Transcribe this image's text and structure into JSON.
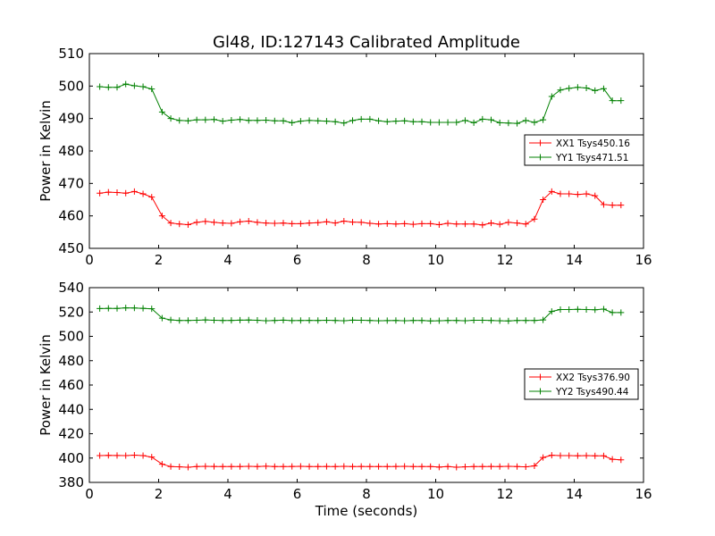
{
  "figure_title": "Gl48, ID:127143 Calibrated Amplitude",
  "chart_data": [
    {
      "type": "line",
      "title": "Gl48, ID:127143 Calibrated Amplitude",
      "xlabel": "",
      "ylabel": "Power in Kelvin",
      "xlim": [
        0,
        16
      ],
      "ylim": [
        450,
        510
      ],
      "xticks": [
        0,
        2,
        4,
        6,
        8,
        10,
        12,
        14,
        16
      ],
      "yticks": [
        450,
        460,
        470,
        480,
        490,
        500,
        510
      ],
      "grid": false,
      "legend_position": "right",
      "series": [
        {
          "name": "XX1 Tsys450.16",
          "color": "#ff0000",
          "marker": "plus",
          "x": [
            0.3,
            0.55,
            0.8,
            1.05,
            1.3,
            1.55,
            1.8,
            2.1,
            2.35,
            2.6,
            2.85,
            3.1,
            3.35,
            3.6,
            3.85,
            4.1,
            4.35,
            4.6,
            4.85,
            5.1,
            5.35,
            5.6,
            5.85,
            6.1,
            6.35,
            6.6,
            6.85,
            7.1,
            7.35,
            7.6,
            7.85,
            8.1,
            8.35,
            8.6,
            8.85,
            9.1,
            9.35,
            9.6,
            9.85,
            10.1,
            10.35,
            10.6,
            10.85,
            11.1,
            11.35,
            11.6,
            11.85,
            12.1,
            12.35,
            12.6,
            12.85,
            13.1,
            13.35,
            13.6,
            13.85,
            14.1,
            14.35,
            14.6,
            14.85,
            15.1,
            15.35
          ],
          "y": [
            467.0,
            467.3,
            467.2,
            467.0,
            467.5,
            466.8,
            465.8,
            460.0,
            457.8,
            457.5,
            457.3,
            458.0,
            458.3,
            458.0,
            457.8,
            457.7,
            458.2,
            458.4,
            458.0,
            457.8,
            457.7,
            457.8,
            457.6,
            457.6,
            457.8,
            457.9,
            458.2,
            457.8,
            458.4,
            458.1,
            458.0,
            457.7,
            457.5,
            457.6,
            457.5,
            457.6,
            457.4,
            457.6,
            457.6,
            457.3,
            457.7,
            457.5,
            457.5,
            457.5,
            457.2,
            457.8,
            457.4,
            458.0,
            457.8,
            457.5,
            459.0,
            465.0,
            467.5,
            466.8,
            466.8,
            466.6,
            466.8,
            466.2,
            463.5,
            463.3,
            463.3
          ]
        },
        {
          "name": "YY1 Tsys471.51",
          "color": "#008000",
          "marker": "plus",
          "x": [
            0.3,
            0.55,
            0.8,
            1.05,
            1.3,
            1.55,
            1.8,
            2.1,
            2.35,
            2.6,
            2.85,
            3.1,
            3.35,
            3.6,
            3.85,
            4.1,
            4.35,
            4.6,
            4.85,
            5.1,
            5.35,
            5.6,
            5.85,
            6.1,
            6.35,
            6.6,
            6.85,
            7.1,
            7.35,
            7.6,
            7.85,
            8.1,
            8.35,
            8.6,
            8.85,
            9.1,
            9.35,
            9.6,
            9.85,
            10.1,
            10.35,
            10.6,
            10.85,
            11.1,
            11.35,
            11.6,
            11.85,
            12.1,
            12.35,
            12.6,
            12.85,
            13.1,
            13.35,
            13.6,
            13.85,
            14.1,
            14.35,
            14.6,
            14.85,
            15.1,
            15.35
          ],
          "y": [
            499.8,
            499.6,
            499.6,
            500.6,
            500.1,
            499.8,
            499.1,
            492.0,
            490.0,
            489.4,
            489.3,
            489.6,
            489.6,
            489.7,
            489.2,
            489.5,
            489.7,
            489.4,
            489.4,
            489.5,
            489.3,
            489.3,
            488.7,
            489.2,
            489.4,
            489.3,
            489.2,
            489.0,
            488.6,
            489.4,
            489.8,
            489.8,
            489.3,
            489.0,
            489.2,
            489.3,
            489.0,
            489.0,
            488.8,
            488.8,
            488.8,
            488.8,
            489.4,
            488.7,
            489.8,
            489.6,
            488.7,
            488.6,
            488.5,
            489.4,
            488.8,
            489.6,
            496.8,
            498.8,
            499.3,
            499.6,
            499.4,
            498.6,
            499.2,
            495.5,
            495.5
          ]
        }
      ]
    },
    {
      "type": "line",
      "title": "",
      "xlabel": "Time (seconds)",
      "ylabel": "Power in Kelvin",
      "xlim": [
        0,
        16
      ],
      "ylim": [
        380,
        540
      ],
      "xticks": [
        0,
        2,
        4,
        6,
        8,
        10,
        12,
        14,
        16
      ],
      "yticks": [
        380,
        400,
        420,
        440,
        460,
        480,
        500,
        520,
        540
      ],
      "grid": false,
      "legend_position": "right",
      "series": [
        {
          "name": "XX2 Tsys376.90",
          "color": "#ff0000",
          "marker": "plus",
          "x": [
            0.3,
            0.55,
            0.8,
            1.05,
            1.3,
            1.55,
            1.8,
            2.1,
            2.35,
            2.6,
            2.85,
            3.1,
            3.35,
            3.6,
            3.85,
            4.1,
            4.35,
            4.6,
            4.85,
            5.1,
            5.35,
            5.6,
            5.85,
            6.1,
            6.35,
            6.6,
            6.85,
            7.1,
            7.35,
            7.6,
            7.85,
            8.1,
            8.35,
            8.6,
            8.85,
            9.1,
            9.35,
            9.6,
            9.85,
            10.1,
            10.35,
            10.6,
            10.85,
            11.1,
            11.35,
            11.6,
            11.85,
            12.1,
            12.35,
            12.6,
            12.85,
            13.1,
            13.35,
            13.6,
            13.85,
            14.1,
            14.35,
            14.6,
            14.85,
            15.1,
            15.35
          ],
          "y": [
            402.0,
            402.2,
            402.1,
            402.0,
            402.4,
            402.0,
            400.8,
            395.0,
            393.0,
            392.8,
            392.5,
            393.0,
            393.2,
            393.1,
            393.0,
            393.0,
            393.0,
            393.2,
            393.0,
            393.3,
            393.0,
            393.0,
            393.1,
            393.2,
            393.0,
            393.0,
            393.1,
            393.0,
            393.2,
            393.0,
            393.1,
            393.0,
            393.0,
            393.0,
            393.1,
            393.2,
            393.0,
            393.0,
            393.0,
            392.6,
            393.0,
            392.5,
            392.8,
            393.0,
            393.0,
            393.1,
            393.0,
            393.2,
            393.0,
            392.8,
            393.6,
            400.5,
            402.3,
            402.0,
            402.0,
            401.9,
            402.0,
            401.8,
            401.8,
            399.0,
            398.5
          ]
        },
        {
          "name": "YY2 Tsys490.44",
          "color": "#008000",
          "marker": "plus",
          "x": [
            0.3,
            0.55,
            0.8,
            1.05,
            1.3,
            1.55,
            1.8,
            2.1,
            2.35,
            2.6,
            2.85,
            3.1,
            3.35,
            3.6,
            3.85,
            4.1,
            4.35,
            4.6,
            4.85,
            5.1,
            5.35,
            5.6,
            5.85,
            6.1,
            6.35,
            6.6,
            6.85,
            7.1,
            7.35,
            7.6,
            7.85,
            8.1,
            8.35,
            8.6,
            8.85,
            9.1,
            9.35,
            9.6,
            9.85,
            10.1,
            10.35,
            10.6,
            10.85,
            11.1,
            11.35,
            11.6,
            11.85,
            12.1,
            12.35,
            12.6,
            12.85,
            13.1,
            13.35,
            13.6,
            13.85,
            14.1,
            14.35,
            14.6,
            14.85,
            15.1,
            15.35
          ],
          "y": [
            522.8,
            523.0,
            522.9,
            523.4,
            523.3,
            523.0,
            522.7,
            515.0,
            513.5,
            513.0,
            513.0,
            513.2,
            513.5,
            513.2,
            513.0,
            513.1,
            513.3,
            513.4,
            513.2,
            512.8,
            513.0,
            513.3,
            512.9,
            513.0,
            513.1,
            513.0,
            513.2,
            513.0,
            512.8,
            513.3,
            513.2,
            513.0,
            512.8,
            512.9,
            513.0,
            512.8,
            513.0,
            513.0,
            512.7,
            512.8,
            513.0,
            513.0,
            512.8,
            513.2,
            513.2,
            513.0,
            512.8,
            512.7,
            513.0,
            513.0,
            513.0,
            513.5,
            520.5,
            522.0,
            522.0,
            522.2,
            522.0,
            521.8,
            522.4,
            519.5,
            519.5
          ]
        }
      ]
    }
  ]
}
